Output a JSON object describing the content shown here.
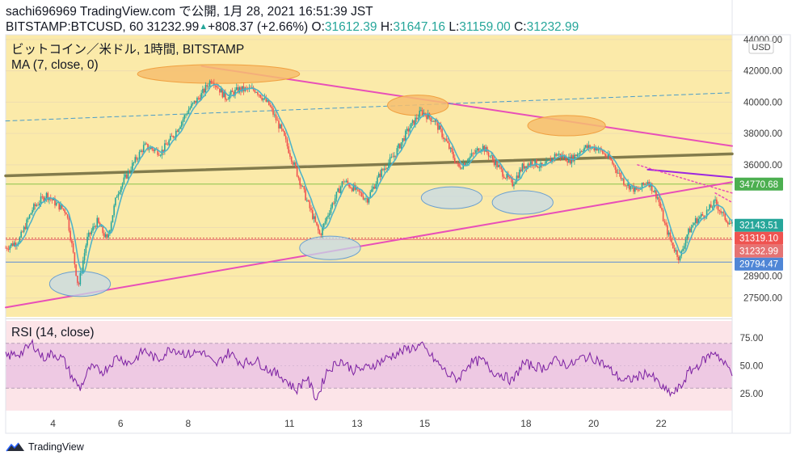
{
  "header": {
    "line1": "sachi696969 TradingView.com で公開, 1月 28, 2021 16:51:39 JST",
    "symbol": "BITSTAMP:BTCUSD, 60",
    "last": "31232.99",
    "arrow": "▲",
    "change": "+808.37 (+2.66%)",
    "o_label": "O:",
    "o_val": "31612.39",
    "h_label": "H:",
    "h_val": "31647.16",
    "l_label": "L:",
    "l_val": "31159.00",
    "c_label": "C:",
    "c_val": "31232.99"
  },
  "legend": {
    "title": "ビットコイン／米ドル, 1時間, BITSTAMP",
    "ma": "MA (7, close, 0)",
    "rsi": "RSI (14, close)"
  },
  "brand": {
    "name": "TradingView"
  },
  "colors": {
    "price_bg": "#fbeaa9",
    "rsi_bg": "#fce4e8",
    "rsi_band": "#eec9e3",
    "candle_up": "#26a69a",
    "candle_down": "#ef5350",
    "ma": "#4fb3c8",
    "rsi_line": "#7b1fa2",
    "trend_pink": "#e84fb8",
    "trend_olive": "#827b4c",
    "trend_purple": "#9c27e0",
    "h_green": "#8bc34a",
    "h_red": "#e05050",
    "h_blue": "#5b8ad8",
    "ellipse_orange": "#f6be6e",
    "ellipse_blue": "#c6dae8"
  },
  "chart_data": {
    "type": "candlestick",
    "unit": "USD",
    "y_ticks": [
      44000,
      42000,
      40000,
      38000,
      36000,
      34000,
      32000,
      30000,
      28900,
      27500
    ],
    "y_tick_labels": [
      "44000.00",
      "42000.00",
      "40000.00",
      "38000.00",
      "36000.00",
      "",
      "",
      "",
      "28900.00",
      "27500.00"
    ],
    "ylim": [
      26300,
      44300
    ],
    "x_tick_labels": [
      "4",
      "6",
      "8",
      "11",
      "13",
      "15",
      "18",
      "20",
      "22"
    ],
    "x_tick_days": [
      4,
      6,
      8,
      11,
      13,
      15,
      18,
      20,
      22
    ],
    "x_day_range": [
      2.6,
      24.1
    ],
    "price_path": [
      [
        2.6,
        30700
      ],
      [
        3.0,
        31200
      ],
      [
        3.4,
        33200
      ],
      [
        3.8,
        34100
      ],
      [
        4.1,
        33500
      ],
      [
        4.4,
        33000
      ],
      [
        4.6,
        30300
      ],
      [
        4.75,
        28200
      ],
      [
        5.0,
        31200
      ],
      [
        5.3,
        32400
      ],
      [
        5.6,
        31200
      ],
      [
        5.9,
        34200
      ],
      [
        6.3,
        35800
      ],
      [
        6.7,
        37200
      ],
      [
        7.2,
        36800
      ],
      [
        7.6,
        38000
      ],
      [
        8.0,
        39500
      ],
      [
        8.4,
        40500
      ],
      [
        8.7,
        41500
      ],
      [
        9.1,
        40300
      ],
      [
        9.5,
        40800
      ],
      [
        10.0,
        40800
      ],
      [
        10.4,
        39800
      ],
      [
        10.8,
        38000
      ],
      [
        11.2,
        35600
      ],
      [
        11.5,
        33800
      ],
      [
        11.9,
        31500
      ],
      [
        12.2,
        33200
      ],
      [
        12.6,
        35000
      ],
      [
        13.0,
        34300
      ],
      [
        13.3,
        33800
      ],
      [
        13.7,
        35500
      ],
      [
        14.1,
        36600
      ],
      [
        14.5,
        38200
      ],
      [
        14.9,
        39400
      ],
      [
        15.3,
        38800
      ],
      [
        15.7,
        37200
      ],
      [
        16.0,
        35800
      ],
      [
        16.3,
        36400
      ],
      [
        16.7,
        37200
      ],
      [
        17.0,
        36400
      ],
      [
        17.3,
        35500
      ],
      [
        17.6,
        34800
      ],
      [
        17.9,
        35900
      ],
      [
        18.2,
        36200
      ],
      [
        18.5,
        35800
      ],
      [
        18.9,
        36700
      ],
      [
        19.3,
        36300
      ],
      [
        19.7,
        37100
      ],
      [
        20.1,
        37100
      ],
      [
        20.5,
        36300
      ],
      [
        20.9,
        34900
      ],
      [
        21.3,
        34300
      ],
      [
        21.6,
        35000
      ],
      [
        21.9,
        33900
      ],
      [
        22.1,
        32200
      ],
      [
        22.35,
        30800
      ],
      [
        22.55,
        30000
      ],
      [
        22.75,
        31500
      ],
      [
        23.0,
        32400
      ],
      [
        23.3,
        32900
      ],
      [
        23.6,
        33600
      ],
      [
        23.85,
        32700
      ],
      [
        24.1,
        32143.51
      ]
    ],
    "price_labels": [
      {
        "value": 34770.68,
        "text": "34770.68",
        "color": "#4caf50"
      },
      {
        "value": 32143.51,
        "text": "32143.51",
        "color": "#26a69a"
      },
      {
        "value": 31319.1,
        "text": "31319.10",
        "color": "#ef5350"
      },
      {
        "value": 31232.99,
        "text": "31232.99",
        "color": "#e57373"
      },
      {
        "value": 29794.47,
        "text": "29794.47",
        "color": "#4f86d6"
      }
    ],
    "horizontal_lines": [
      {
        "value": 34770.68,
        "color": "#8bc34a",
        "style": "solid"
      },
      {
        "value": 31319.1,
        "color": "#e05050",
        "style": "dotted"
      },
      {
        "value": 31232.99,
        "color": "#e57373",
        "style": "solid"
      },
      {
        "value": 29794.47,
        "color": "#5b8ad8",
        "style": "solid"
      }
    ],
    "trend_lines": [
      {
        "from": [
          8.4,
          42300
        ],
        "to": [
          24.1,
          37200
        ],
        "color": "#e84fb8",
        "width": 2
      },
      {
        "from": [
          2.6,
          26900
        ],
        "to": [
          24.1,
          34900
        ],
        "color": "#e84fb8",
        "width": 2
      },
      {
        "from": [
          2.6,
          35300
        ],
        "to": [
          24.1,
          36700
        ],
        "color": "#827b4c",
        "width": 3.5
      },
      {
        "from": [
          2.6,
          38800
        ],
        "to": [
          24.1,
          40600
        ],
        "color": "#4a9cc8",
        "width": 1,
        "dash": "5,4"
      },
      {
        "from": [
          21.6,
          35700
        ],
        "to": [
          24.1,
          35200
        ],
        "color": "#9c27e0",
        "width": 2
      },
      {
        "from": [
          21.3,
          36000
        ],
        "to": [
          24.1,
          34200
        ],
        "color": "#e84fb8",
        "width": 1.5,
        "dash": "2,3"
      },
      {
        "from": [
          23.6,
          34200
        ],
        "to": [
          24.1,
          33600
        ],
        "color": "#e84fb8",
        "width": 1.5,
        "dash": "2,3"
      }
    ],
    "ellipses": [
      {
        "cx": 8.9,
        "cy": 41800,
        "rx_days": 2.4,
        "ry_price": 600,
        "kind": "orange"
      },
      {
        "cx": 14.8,
        "cy": 39800,
        "rx_days": 0.9,
        "ry_price": 650,
        "kind": "orange"
      },
      {
        "cx": 19.2,
        "cy": 38500,
        "rx_days": 1.15,
        "ry_price": 650,
        "kind": "orange"
      },
      {
        "cx": 15.8,
        "cy": 33900,
        "rx_days": 0.9,
        "ry_price": 700,
        "kind": "blue"
      },
      {
        "cx": 17.9,
        "cy": 33600,
        "rx_days": 0.9,
        "ry_price": 750,
        "kind": "blue"
      },
      {
        "cx": 12.2,
        "cy": 30700,
        "rx_days": 0.9,
        "ry_price": 750,
        "kind": "blue"
      },
      {
        "cx": 4.8,
        "cy": 28400,
        "rx_days": 0.9,
        "ry_price": 800,
        "kind": "blue"
      }
    ],
    "rsi": {
      "ylim": [
        10,
        90
      ],
      "y_ticks": [
        75,
        50,
        25
      ],
      "y_tick_labels": [
        "75.00",
        "50.00",
        "25.00"
      ],
      "band": [
        30,
        70
      ],
      "path": [
        [
          2.6,
          58
        ],
        [
          3.1,
          62
        ],
        [
          3.4,
          70
        ],
        [
          3.7,
          57
        ],
        [
          4.0,
          61
        ],
        [
          4.3,
          56
        ],
        [
          4.6,
          38
        ],
        [
          4.8,
          30
        ],
        [
          5.1,
          48
        ],
        [
          5.5,
          45
        ],
        [
          5.9,
          58
        ],
        [
          6.3,
          52
        ],
        [
          6.7,
          64
        ],
        [
          7.1,
          55
        ],
        [
          7.5,
          66
        ],
        [
          8.0,
          60
        ],
        [
          8.4,
          63
        ],
        [
          8.8,
          50
        ],
        [
          9.2,
          62
        ],
        [
          9.6,
          52
        ],
        [
          10.0,
          55
        ],
        [
          10.4,
          46
        ],
        [
          10.8,
          40
        ],
        [
          11.2,
          28
        ],
        [
          11.5,
          40
        ],
        [
          11.8,
          20
        ],
        [
          12.1,
          45
        ],
        [
          12.5,
          55
        ],
        [
          12.9,
          46
        ],
        [
          13.3,
          48
        ],
        [
          13.7,
          54
        ],
        [
          14.1,
          60
        ],
        [
          14.5,
          65
        ],
        [
          14.9,
          68
        ],
        [
          15.3,
          55
        ],
        [
          15.7,
          42
        ],
        [
          16.0,
          38
        ],
        [
          16.3,
          52
        ],
        [
          16.7,
          55
        ],
        [
          17.0,
          45
        ],
        [
          17.3,
          42
        ],
        [
          17.6,
          36
        ],
        [
          17.9,
          52
        ],
        [
          18.2,
          50
        ],
        [
          18.5,
          48
        ],
        [
          18.9,
          55
        ],
        [
          19.3,
          50
        ],
        [
          19.7,
          58
        ],
        [
          20.1,
          56
        ],
        [
          20.5,
          46
        ],
        [
          20.9,
          36
        ],
        [
          21.3,
          40
        ],
        [
          21.6,
          44
        ],
        [
          21.9,
          35
        ],
        [
          22.1,
          28
        ],
        [
          22.35,
          25
        ],
        [
          22.6,
          32
        ],
        [
          22.8,
          44
        ],
        [
          23.0,
          48
        ],
        [
          23.3,
          56
        ],
        [
          23.6,
          63
        ],
        [
          23.85,
          52
        ],
        [
          24.1,
          45
        ]
      ]
    }
  }
}
